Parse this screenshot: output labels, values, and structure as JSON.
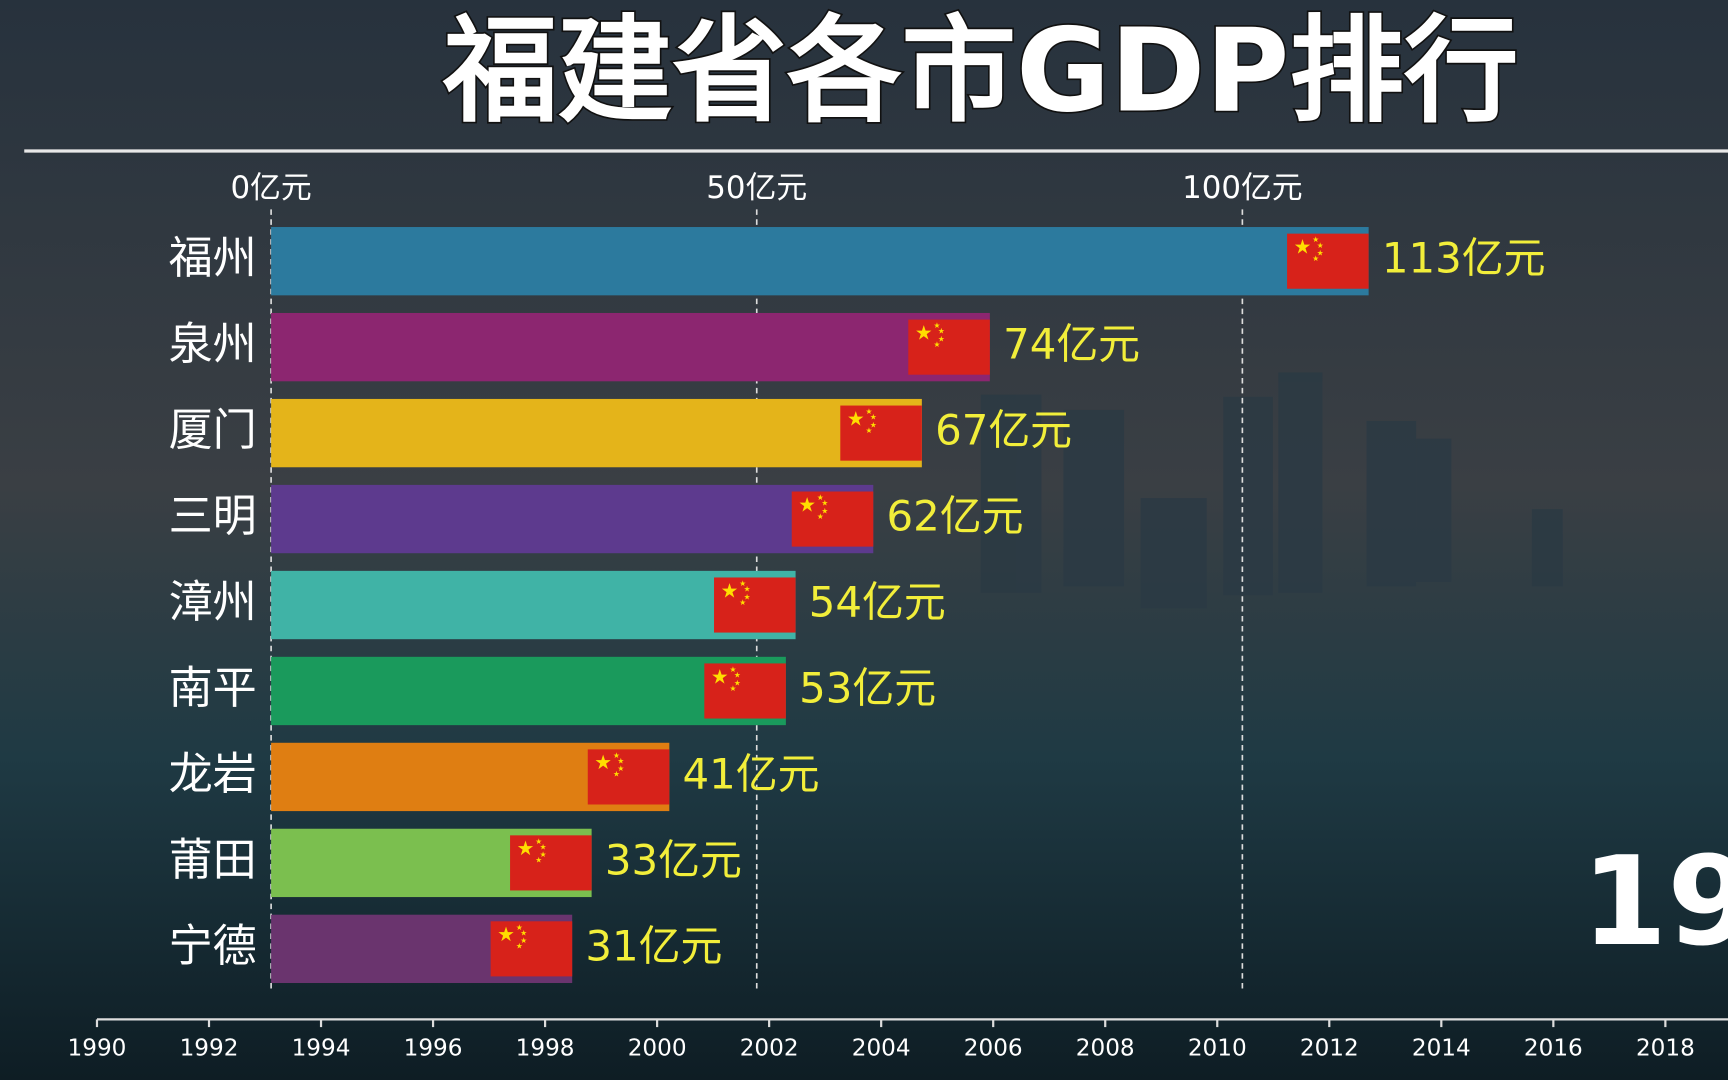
{
  "chart_data": {
    "type": "bar",
    "orientation": "horizontal",
    "title": "福建省各市GDP排行",
    "categories": [
      "福州",
      "泉州",
      "厦门",
      "三明",
      "漳州",
      "南平",
      "龙岩",
      "莆田",
      "宁德"
    ],
    "values": [
      113,
      74,
      67,
      62,
      54,
      53,
      41,
      33,
      31
    ],
    "value_labels": [
      "113亿元",
      "74亿元",
      "67亿元",
      "62亿元",
      "54亿元",
      "53亿元",
      "41亿元",
      "33亿元",
      "31亿元"
    ],
    "colors": [
      "#2c7a9e",
      "#8c2670",
      "#e4b41a",
      "#5d3a8e",
      "#40b3a6",
      "#1a9a5c",
      "#df7e12",
      "#7bbf4f",
      "#6a346e"
    ],
    "xlim": [
      0,
      150
    ],
    "xticks": [
      {
        "value": 0,
        "label": "0亿元"
      },
      {
        "value": 50,
        "label": "50亿元"
      },
      {
        "value": 100,
        "label": "100亿元"
      }
    ],
    "grid": true,
    "year_label": "19",
    "timeline": {
      "lim": [
        1990,
        2019
      ],
      "ticks": [
        1990,
        1992,
        1994,
        1996,
        1998,
        2000,
        2002,
        2004,
        2006,
        2008,
        2010,
        2012,
        2014,
        2016,
        2018
      ]
    }
  }
}
